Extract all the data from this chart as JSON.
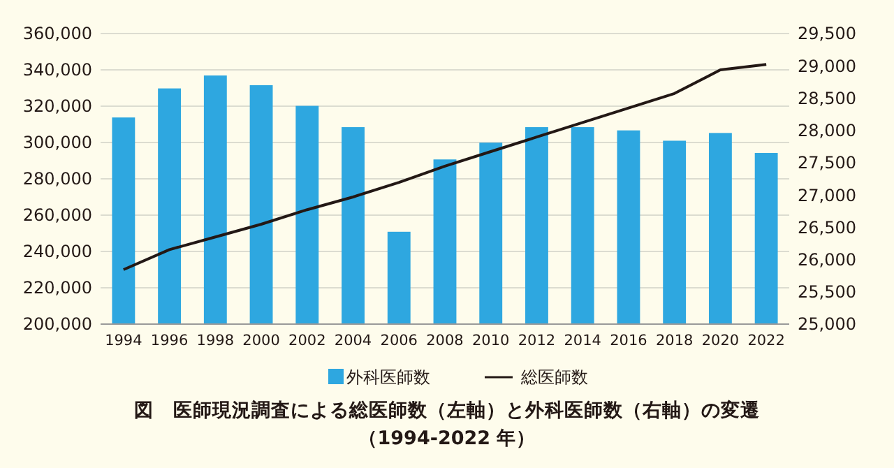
{
  "chart_data": {
    "type": "bar",
    "title": "図　医師現況調査による総医師数（左軸）と外科医師数（右軸）の変遷",
    "subtitle": "（1994-2022 年）",
    "categories": [
      "1994",
      "1996",
      "1998",
      "2000",
      "2002",
      "2004",
      "2006",
      "2008",
      "2010",
      "2012",
      "2014",
      "2016",
      "2018",
      "2020",
      "2022"
    ],
    "series": [
      {
        "name": "外科医師数",
        "axis": "y2",
        "color": "#2ea7e0",
        "values": [
          28200,
          28650,
          28850,
          28700,
          28380,
          28050,
          26430,
          27550,
          27810,
          28050,
          28050,
          28000,
          27840,
          27960,
          27650
        ]
      },
      {
        "name": "総医師数",
        "type": "line",
        "axis": "y",
        "color": "#231815",
        "values": [
          230000,
          241000,
          248000,
          255000,
          263000,
          270000,
          278000,
          287000,
          295000,
          303000,
          311000,
          319000,
          327000,
          340000,
          343000
        ]
      }
    ],
    "ylim": [
      200000,
      360000
    ],
    "yticks": [
      {
        "value": 200000,
        "label": "200,000"
      },
      {
        "value": 220000,
        "label": "220,000"
      },
      {
        "value": 240000,
        "label": "240,000"
      },
      {
        "value": 260000,
        "label": "260,000"
      },
      {
        "value": 280000,
        "label": "280,000"
      },
      {
        "value": 300000,
        "label": "300,000"
      },
      {
        "value": 320000,
        "label": "320,000"
      },
      {
        "value": 340000,
        "label": "340,000"
      },
      {
        "value": 360000,
        "label": "360,000"
      }
    ],
    "y2lim": [
      25000,
      29500
    ],
    "y2ticks": [
      {
        "value": 25000,
        "label": "25,000"
      },
      {
        "value": 25500,
        "label": "25,500"
      },
      {
        "value": 26000,
        "label": "26,000"
      },
      {
        "value": 26500,
        "label": "26,500"
      },
      {
        "value": 27000,
        "label": "27,000"
      },
      {
        "value": 27500,
        "label": "27,500"
      },
      {
        "value": 28000,
        "label": "28,000"
      },
      {
        "value": 28500,
        "label": "28,500"
      },
      {
        "value": 29000,
        "label": "29,000"
      },
      {
        "value": 29500,
        "label": "29,500"
      }
    ],
    "grid": "y",
    "legend": "bottom",
    "marker": "none",
    "line_style": "solid"
  }
}
